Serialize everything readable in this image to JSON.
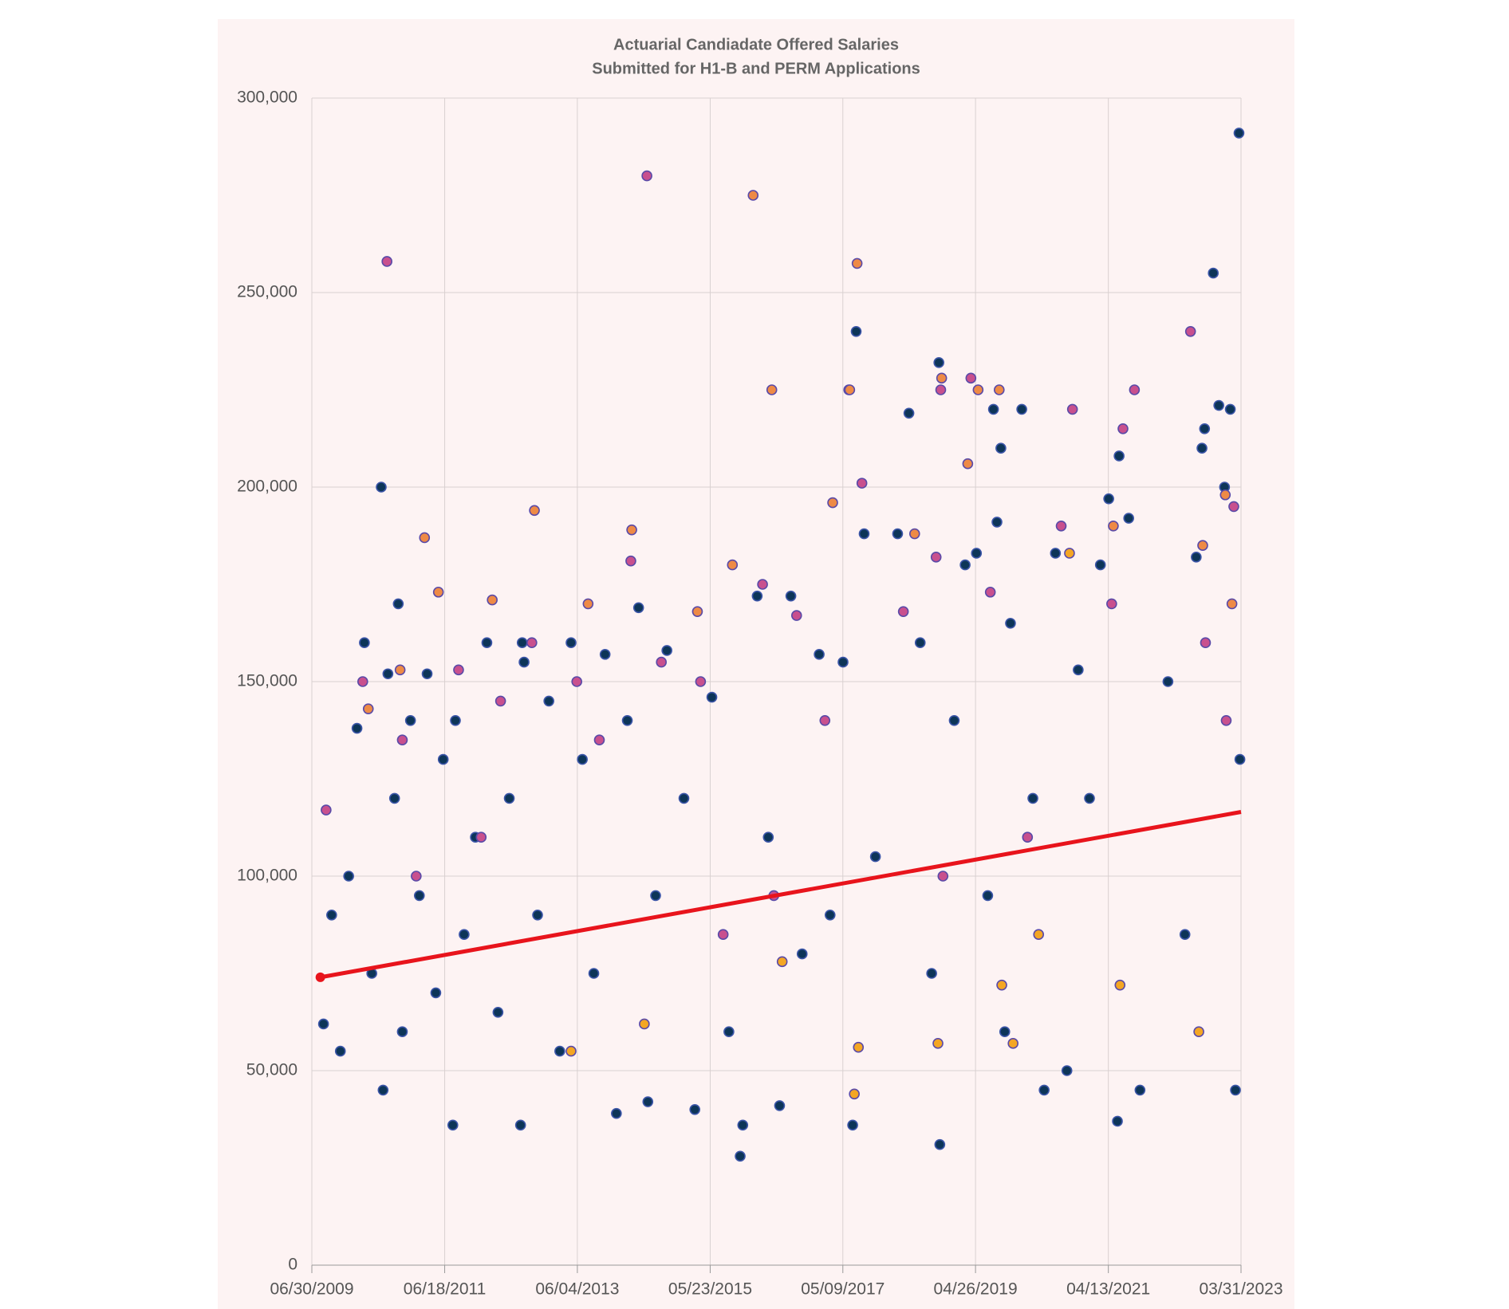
{
  "chart_data": {
    "type": "scatter",
    "title": "Actuarial Candiadate Offered Salaries",
    "subtitle": "Submitted for H1-B and PERM Applications",
    "xlim": [
      "2009-06-30",
      "2023-03-31"
    ],
    "xticks": [
      {
        "value": "2009-06-30",
        "label": "06/30/2009"
      },
      {
        "value": "2011-06-18",
        "label": "06/18/2011"
      },
      {
        "value": "2013-06-04",
        "label": "06/04/2013"
      },
      {
        "value": "2015-05-23",
        "label": "05/23/2015"
      },
      {
        "value": "2017-05-09",
        "label": "05/09/2017"
      },
      {
        "value": "2019-04-26",
        "label": "04/26/2019"
      },
      {
        "value": "2021-04-13",
        "label": "04/13/2021"
      },
      {
        "value": "2023-03-31",
        "label": "03/31/2023"
      }
    ],
    "ylim": [
      0,
      300000
    ],
    "yticks": [
      0,
      {
        "value": 50000,
        "label": "50,000"
      },
      {
        "value": 100000,
        "label": "100,000"
      },
      {
        "value": 150000,
        "label": "150,000"
      },
      {
        "value": 200000,
        "label": "200,000"
      },
      {
        "value": 250000,
        "label": "250,000"
      },
      {
        "value": 300000,
        "label": "300,000"
      }
    ],
    "grid": true,
    "background": "#fdf3f3",
    "series": [
      {
        "type": "scatter",
        "color": "#0d3558",
        "stroke": "#3b55a8",
        "x": [
          "2009-09-01",
          "2009-10-15",
          "2009-12-01",
          "2010-01-15",
          "2010-03-01",
          "2010-04-10",
          "2010-05-20",
          "2010-07-10",
          "2010-07-20",
          "2010-08-15",
          "2010-09-20",
          "2010-10-10",
          "2010-11-01",
          "2010-12-15",
          "2011-02-01",
          "2011-03-15",
          "2011-05-01",
          "2011-06-10",
          "2011-08-01",
          "2011-08-15",
          "2011-10-01",
          "2011-12-01",
          "2012-02-01",
          "2012-04-01",
          "2012-06-01",
          "2012-08-01",
          "2012-08-10",
          "2012-08-20",
          "2012-11-01",
          "2013-01-01",
          "2013-03-01",
          "2013-05-01",
          "2013-07-01",
          "2013-09-01",
          "2013-11-01",
          "2014-01-01",
          "2014-03-01",
          "2014-05-01",
          "2014-06-20",
          "2014-08-01",
          "2014-10-01",
          "2015-01-01",
          "2015-03-01",
          "2015-06-01",
          "2015-09-01",
          "2015-11-01",
          "2015-11-15",
          "2016-02-01",
          "2016-04-01",
          "2016-06-01",
          "2016-08-01",
          "2016-10-01",
          "2017-01-01",
          "2017-03-01",
          "2017-05-10",
          "2017-07-01",
          "2017-07-20",
          "2017-09-01",
          "2017-11-01",
          "2018-03-01",
          "2018-05-01",
          "2018-07-01",
          "2018-09-01",
          "2018-10-10",
          "2018-10-15",
          "2019-01-01",
          "2019-03-01",
          "2019-05-01",
          "2019-07-01",
          "2019-08-01",
          "2019-08-20",
          "2019-09-10",
          "2019-10-01",
          "2019-11-01",
          "2020-01-01",
          "2020-03-01",
          "2020-05-01",
          "2020-07-01",
          "2020-09-01",
          "2020-11-01",
          "2021-01-01",
          "2021-03-01",
          "2021-04-15",
          "2021-06-01",
          "2021-06-10",
          "2021-08-01",
          "2021-10-01",
          "2022-03-01",
          "2022-06-01",
          "2022-08-01",
          "2022-09-01",
          "2022-09-15",
          "2022-11-01",
          "2022-12-01",
          "2023-01-01",
          "2023-02-01",
          "2023-03-01",
          "2023-03-20",
          "2023-03-25"
        ],
        "values": [
          62000,
          90000,
          55000,
          100000,
          138000,
          160000,
          75000,
          200000,
          45000,
          152000,
          120000,
          170000,
          60000,
          140000,
          95000,
          152000,
          70000,
          130000,
          36000,
          140000,
          85000,
          110000,
          160000,
          65000,
          120000,
          36000,
          160000,
          155000,
          90000,
          145000,
          55000,
          160000,
          130000,
          75000,
          157000,
          39000,
          140000,
          169000,
          42000,
          95000,
          158000,
          120000,
          40000,
          146000,
          60000,
          28000,
          36000,
          172000,
          110000,
          41000,
          172000,
          80000,
          157000,
          90000,
          155000,
          36000,
          240000,
          188000,
          105000,
          188000,
          219000,
          160000,
          75000,
          232000,
          31000,
          140000,
          180000,
          183000,
          95000,
          220000,
          191000,
          210000,
          60000,
          165000,
          220000,
          120000,
          45000,
          183000,
          50000,
          153000,
          120000,
          180000,
          197000,
          37000,
          208000,
          192000,
          45000,
          150000,
          85000,
          182000,
          210000,
          215000,
          255000,
          221000,
          200000,
          220000,
          45000,
          291000,
          130000
        ]
      },
      {
        "type": "scatter",
        "color": "#c8508e",
        "stroke": "#5a4aa8",
        "x": [
          "2009-09-15",
          "2010-04-01",
          "2010-08-10",
          "2010-11-01",
          "2011-01-15",
          "2011-09-01",
          "2012-04-15",
          "2012-10-01",
          "2013-06-01",
          "2013-10-01",
          "2014-03-20",
          "2014-06-15",
          "2014-09-01",
          "2015-04-01",
          "2015-08-01",
          "2016-03-01",
          "2016-09-01",
          "2017-02-01",
          "2017-06-10",
          "2017-08-20",
          "2018-04-01",
          "2018-09-25",
          "2018-10-20",
          "2019-04-01",
          "2019-07-15",
          "2020-08-01",
          "2020-10-01",
          "2021-05-01",
          "2021-07-01",
          "2021-09-01",
          "2022-07-01",
          "2022-09-20",
          "2023-02-20",
          "2023-01-10",
          "2016-05-01",
          "2018-11-01",
          "2012-01-01",
          "2020-02-01"
        ],
        "values": [
          117000,
          150000,
          258000,
          135000,
          100000,
          153000,
          145000,
          160000,
          150000,
          135000,
          181000,
          280000,
          155000,
          150000,
          85000,
          175000,
          167000,
          140000,
          225000,
          201000,
          168000,
          182000,
          225000,
          228000,
          173000,
          190000,
          220000,
          170000,
          215000,
          225000,
          240000,
          160000,
          195000,
          140000,
          95000,
          100000,
          110000,
          110000
        ]
      },
      {
        "type": "scatter",
        "color": "#ee8a46",
        "stroke": "#5a4aa8",
        "x": [
          "2010-05-01",
          "2010-10-20",
          "2011-03-01",
          "2011-05-15",
          "2012-03-01",
          "2012-10-15",
          "2013-08-01",
          "2014-03-25",
          "2015-03-15",
          "2015-09-20",
          "2016-01-10",
          "2016-04-20",
          "2017-03-15",
          "2017-06-15",
          "2017-07-25",
          "2018-06-01",
          "2018-10-25",
          "2019-05-10",
          "2019-03-15",
          "2019-09-01",
          "2021-05-10",
          "2022-09-05",
          "2023-01-05",
          "2023-02-10"
        ],
        "values": [
          143000,
          153000,
          187000,
          173000,
          171000,
          194000,
          170000,
          189000,
          168000,
          180000,
          275000,
          225000,
          196000,
          225000,
          257500,
          188000,
          228000,
          225000,
          206000,
          225000,
          190000,
          185000,
          198000,
          170000
        ]
      },
      {
        "type": "scatter",
        "color": "#f4a623",
        "stroke": "#5a4aa8",
        "x": [
          "2013-05-01",
          "2014-06-01",
          "2016-06-15",
          "2017-07-10",
          "2017-08-01",
          "2018-10-05",
          "2019-09-15",
          "2020-04-01",
          "2020-09-15",
          "2021-06-15",
          "2022-08-15",
          "2019-11-15"
        ],
        "values": [
          55000,
          62000,
          78000,
          44000,
          56000,
          57000,
          72000,
          85000,
          183000,
          72000,
          60000,
          57000
        ]
      },
      {
        "type": "line",
        "color": "#e8141c",
        "x": [
          "2009-08-15",
          "2023-03-31"
        ],
        "values": [
          74000,
          116500
        ]
      }
    ]
  }
}
